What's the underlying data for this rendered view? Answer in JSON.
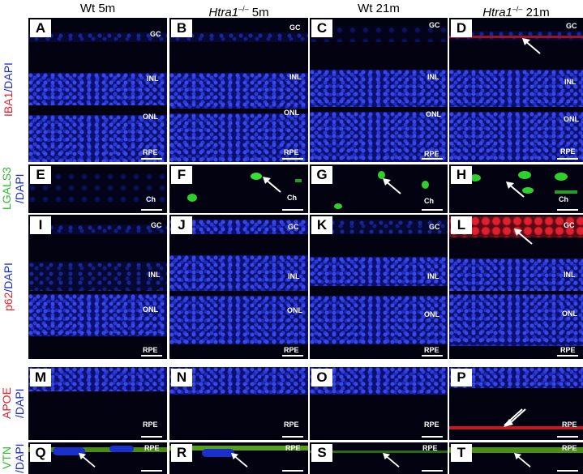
{
  "columns": [
    {
      "plain": "Wt 5m",
      "italic": "",
      "sup": "",
      "suffix": ""
    },
    {
      "plain": "",
      "italic": "Htra1",
      "sup": "–/–",
      "suffix": " 5m"
    },
    {
      "plain": "Wt 21m",
      "italic": "",
      "sup": "",
      "suffix": ""
    },
    {
      "plain": "",
      "italic": "Htra1",
      "sup": "–/–",
      "suffix": " 21m"
    }
  ],
  "rows": [
    {
      "stain": "IBA1",
      "stain_color": "#e8202a",
      "rest": "/DAPI"
    },
    {
      "stain": "LGALS3",
      "stain_color": "#2dbb2d",
      "rest": "/DAPI"
    },
    {
      "stain": "p62",
      "stain_color": "#e8202a",
      "rest": "/DAPI"
    },
    {
      "stain": "APOE",
      "stain_color": "#e8202a",
      "rest": "/DAPI"
    },
    {
      "stain": "VTN",
      "stain_color": "#2dbb2d",
      "rest": "/DAPI"
    }
  ],
  "dapi_color": "#1a2ad8",
  "panels": {
    "A": {
      "letter": "A",
      "labels": [
        "GC",
        "INL",
        "ONL",
        "RPE"
      ]
    },
    "B": {
      "letter": "B",
      "labels": [
        "GC",
        "INL",
        "ONL",
        "RPE"
      ]
    },
    "C": {
      "letter": "C",
      "labels": [
        "GC",
        "INL",
        "ONL",
        "RPE"
      ]
    },
    "D": {
      "letter": "D",
      "labels": [
        "GC",
        "INL",
        "ONL",
        "RPE"
      ]
    },
    "E": {
      "letter": "E",
      "labels": [
        "Ch"
      ]
    },
    "F": {
      "letter": "F",
      "labels": [
        "Ch"
      ]
    },
    "G": {
      "letter": "G",
      "labels": [
        "Ch"
      ]
    },
    "H": {
      "letter": "H",
      "labels": [
        "Ch"
      ]
    },
    "I": {
      "letter": "I",
      "labels": [
        "GC",
        "INL",
        "ONL",
        "RPE"
      ]
    },
    "J": {
      "letter": "J",
      "labels": [
        "GC",
        "INL",
        "ONL",
        "RPE"
      ]
    },
    "K": {
      "letter": "K",
      "labels": [
        "GC",
        "INL",
        "ONL",
        "RPE"
      ]
    },
    "L": {
      "letter": "L",
      "labels": [
        "GC",
        "INL",
        "ONL",
        "RPE"
      ]
    },
    "M": {
      "letter": "M",
      "labels": [
        "RPE"
      ]
    },
    "N": {
      "letter": "N",
      "labels": [
        "RPE"
      ]
    },
    "O": {
      "letter": "O",
      "labels": [
        "RPE"
      ]
    },
    "P": {
      "letter": "P",
      "labels": [
        "RPE"
      ]
    },
    "Q": {
      "letter": "Q",
      "labels": [
        "RPE"
      ]
    },
    "R": {
      "letter": "R",
      "labels": [
        "RPE"
      ]
    },
    "S": {
      "letter": "S",
      "labels": [
        "RPE"
      ]
    },
    "T": {
      "letter": "T",
      "labels": [
        "RPE"
      ]
    }
  }
}
